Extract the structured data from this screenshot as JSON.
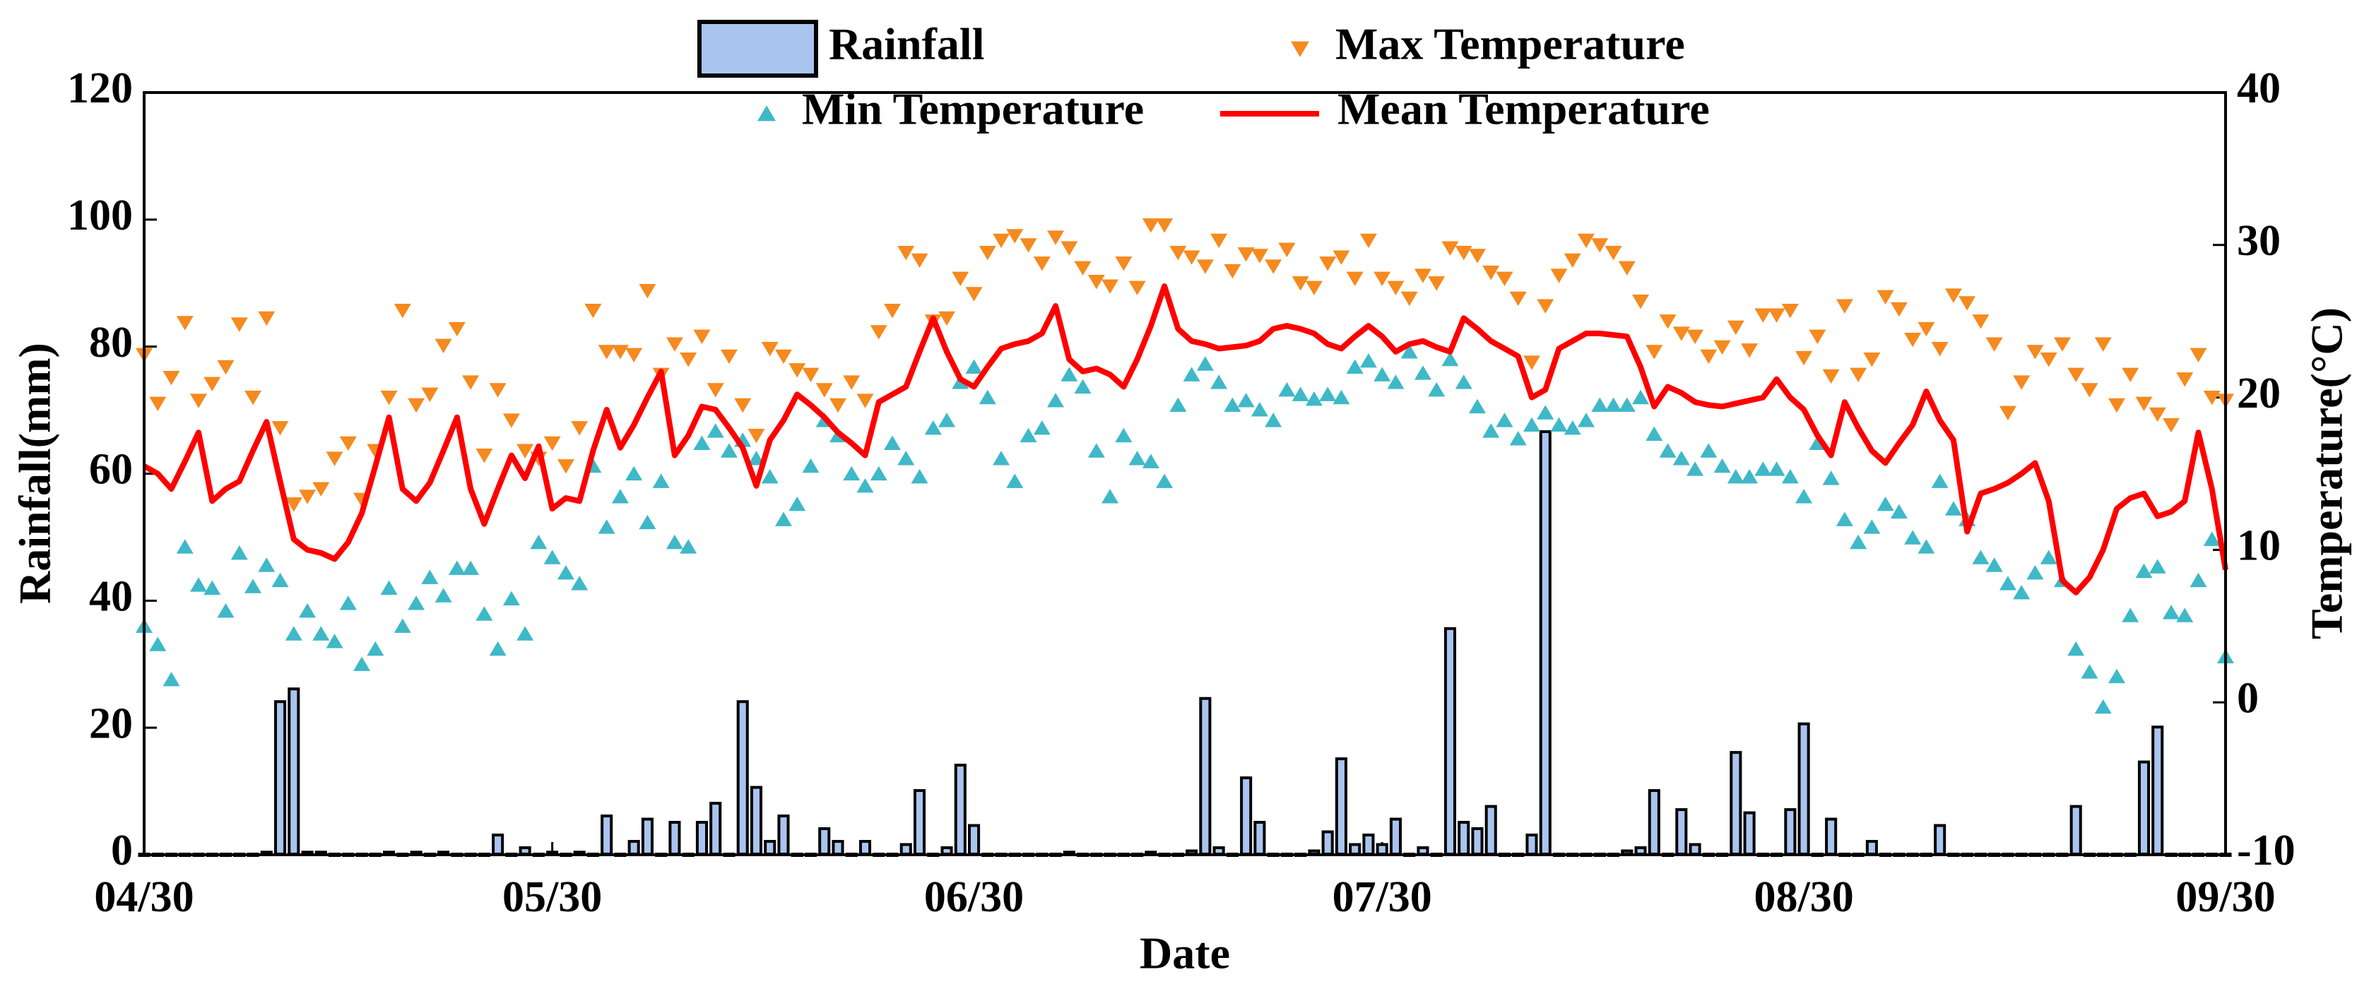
{
  "chart_data": {
    "type": "bar",
    "x_label": "Date",
    "y_label": "Rainfall(mm)",
    "y2_label": "Temperature(°C)",
    "legend": "upper center",
    "categories": [
      "04/30",
      "05/01",
      "05/02",
      "05/03",
      "05/04",
      "05/05",
      "05/06",
      "05/07",
      "05/08",
      "05/09",
      "05/10",
      "05/11",
      "05/12",
      "05/13",
      "05/14",
      "05/15",
      "05/16",
      "05/17",
      "05/18",
      "05/19",
      "05/20",
      "05/21",
      "05/22",
      "05/23",
      "05/24",
      "05/25",
      "05/26",
      "05/27",
      "05/28",
      "05/29",
      "05/30",
      "05/31",
      "06/01",
      "06/02",
      "06/03",
      "06/04",
      "06/05",
      "06/06",
      "06/07",
      "06/08",
      "06/09",
      "06/10",
      "06/11",
      "06/12",
      "06/13",
      "06/14",
      "06/15",
      "06/16",
      "06/17",
      "06/18",
      "06/19",
      "06/20",
      "06/21",
      "06/22",
      "06/23",
      "06/24",
      "06/25",
      "06/26",
      "06/27",
      "06/28",
      "06/29",
      "06/30",
      "07/01",
      "07/02",
      "07/03",
      "07/04",
      "07/05",
      "07/06",
      "07/07",
      "07/08",
      "07/09",
      "07/10",
      "07/11",
      "07/12",
      "07/13",
      "07/14",
      "07/15",
      "07/16",
      "07/17",
      "07/18",
      "07/19",
      "07/20",
      "07/21",
      "07/22",
      "07/23",
      "07/24",
      "07/25",
      "07/26",
      "07/27",
      "07/28",
      "07/29",
      "07/30",
      "07/31",
      "08/01",
      "08/02",
      "08/03",
      "08/04",
      "08/05",
      "08/06",
      "08/07",
      "08/08",
      "08/09",
      "08/10",
      "08/11",
      "08/12",
      "08/13",
      "08/14",
      "08/15",
      "08/16",
      "08/17",
      "08/18",
      "08/19",
      "08/20",
      "08/21",
      "08/22",
      "08/23",
      "08/24",
      "08/25",
      "08/26",
      "08/27",
      "08/28",
      "08/29",
      "08/30",
      "08/31",
      "09/01",
      "09/02",
      "09/03",
      "09/04",
      "09/05",
      "09/06",
      "09/07",
      "09/08",
      "09/09",
      "09/10",
      "09/11",
      "09/12",
      "09/13",
      "09/14",
      "09/15",
      "09/16",
      "09/17",
      "09/18",
      "09/19",
      "09/20",
      "09/21",
      "09/22",
      "09/23",
      "09/24",
      "09/25",
      "09/26",
      "09/27",
      "09/28",
      "09/29",
      "09/30"
    ],
    "xticks": [
      "04/30",
      "05/30",
      "06/30",
      "07/30",
      "08/30",
      "09/30"
    ],
    "ylim": [
      0,
      120
    ],
    "yticks": [
      0,
      20,
      40,
      60,
      80,
      100,
      120
    ],
    "y2lim": [
      -10,
      40
    ],
    "y2ticks": [
      -10,
      0,
      10,
      20,
      30,
      40
    ],
    "series": [
      {
        "name": "Rainfall",
        "type": "bar",
        "color": "#a9c4ef",
        "edgecolor": "#000000",
        "values": [
          0,
          0,
          0,
          0,
          0,
          0,
          0,
          0,
          0,
          0.3,
          24,
          26,
          0.3,
          0.3,
          0,
          0,
          0,
          0,
          0.3,
          0,
          0.3,
          0,
          0.3,
          0,
          0,
          0,
          3,
          0,
          1,
          0,
          0.3,
          0,
          0.3,
          0,
          6,
          0,
          2,
          5.5,
          0,
          5,
          0,
          5,
          8,
          0,
          24,
          10.5,
          2,
          6,
          0,
          0,
          4,
          2,
          0,
          2,
          0,
          0,
          1.5,
          10,
          0,
          1,
          14,
          4.5,
          0,
          0,
          0,
          0,
          0,
          0,
          0.3,
          0,
          0,
          0,
          0,
          0,
          0.3,
          0,
          0,
          0.5,
          24.5,
          1,
          0,
          12,
          5,
          0,
          0,
          0,
          0.5,
          3.5,
          15,
          1.5,
          3,
          1.5,
          5.5,
          0,
          1,
          0,
          35.5,
          5,
          4,
          7.5,
          0,
          0,
          3,
          66.5,
          0,
          0,
          0,
          0,
          0,
          0.5,
          1,
          10,
          0,
          7,
          1.5,
          0,
          0,
          16,
          6.5,
          0,
          0,
          7,
          20.5,
          0,
          5.5,
          0,
          0,
          2,
          0,
          0,
          0,
          0,
          4.5,
          0,
          0,
          0,
          0,
          0,
          0,
          0,
          0,
          0,
          7.5,
          0,
          0,
          0,
          0,
          14.5,
          20,
          0,
          0,
          0,
          0,
          0
        ]
      },
      {
        "name": "Max Temperature",
        "type": "scatter",
        "marker": "down",
        "axis": "y2",
        "color": "#f58a1f",
        "values": [
          22.8,
          19.6,
          21.3,
          24.9,
          19.8,
          20.9,
          22,
          24.8,
          20,
          25.2,
          18,
          13,
          13.5,
          14,
          16,
          17,
          13.3,
          16.5,
          20,
          25.7,
          19.5,
          20.2,
          23.4,
          24.5,
          21,
          16.2,
          20.5,
          18.5,
          16.5,
          16,
          17,
          15.5,
          18,
          25.7,
          23,
          23,
          22.8,
          27,
          21.5,
          23.5,
          22.5,
          24,
          20.5,
          22.7,
          19.5,
          17.5,
          23.2,
          22.7,
          21.8,
          21.5,
          20.5,
          19.5,
          21,
          19.8,
          24.3,
          25.7,
          29.5,
          29,
          25,
          25.2,
          27.8,
          26.8,
          29.5,
          30.3,
          30.6,
          30,
          28.8,
          30.5,
          29.8,
          28.5,
          27.6,
          27.3,
          28.8,
          27.2,
          31.3,
          31.3,
          29.5,
          29.2,
          28.6,
          30.3,
          28.3,
          29.4,
          29.3,
          28.6,
          29.7,
          27.5,
          27.2,
          28.8,
          29.2,
          27.8,
          30.3,
          27.8,
          27.2,
          26.5,
          28,
          27.5,
          29.8,
          29.5,
          29.3,
          28.2,
          27.8,
          26.5,
          22.3,
          26,
          28,
          29,
          30.3,
          30,
          29.5,
          28.5,
          26.3,
          23,
          25,
          24.2,
          24,
          22.7,
          23.3,
          24.6,
          23.1,
          25.4,
          25.4,
          25.7,
          22.6,
          24,
          21.4,
          26,
          21.5,
          22.5,
          26.6,
          25.8,
          23.8,
          24.5,
          23.2,
          26.7,
          26.2,
          25,
          23.5,
          19,
          21,
          23,
          22.5,
          23.5,
          21.5,
          20.5,
          23.5,
          19.5,
          21.5,
          19.6,
          18.9,
          18.2,
          21.2,
          22.8,
          20,
          19.8
        ]
      },
      {
        "name": "Min Temperature",
        "type": "scatter",
        "marker": "up",
        "axis": "y2",
        "color": "#3fb8c8",
        "values": [
          5,
          3.8,
          1.5,
          10.2,
          7.7,
          7.5,
          6,
          9.8,
          7.6,
          9,
          8,
          4.5,
          6,
          4.5,
          4,
          6.5,
          2.5,
          3.5,
          7.5,
          5,
          6.5,
          8.2,
          7,
          8.8,
          8.8,
          5.8,
          3.5,
          6.8,
          4.5,
          10.5,
          9.5,
          8.5,
          7.8,
          15.5,
          11.5,
          13.5,
          15,
          11.8,
          14.5,
          10.5,
          10.2,
          17,
          17.8,
          16.5,
          17.2,
          16,
          14.8,
          12,
          13,
          15.5,
          18.5,
          17.5,
          15,
          14.2,
          15,
          17,
          16,
          14.8,
          18,
          18.5,
          21,
          22,
          20,
          16,
          14.5,
          17.5,
          18,
          19.8,
          21.5,
          20.7,
          16.5,
          13.5,
          17.5,
          16,
          15.8,
          14.5,
          19.5,
          21.5,
          22.2,
          21,
          19.5,
          19.8,
          19.2,
          18.5,
          20.5,
          20.2,
          19.9,
          20.2,
          20,
          22,
          22.4,
          21.5,
          21,
          23,
          21.6,
          20.5,
          22.5,
          21,
          19.4,
          17.8,
          18.5,
          17.3,
          18.2,
          19,
          18.2,
          18,
          18.5,
          19.5,
          19.5,
          19.5,
          20,
          17.6,
          16.5,
          16,
          15.3,
          16.5,
          15.5,
          14.8,
          14.8,
          15.3,
          15.3,
          14.8,
          13.5,
          17,
          14.7,
          12,
          10.5,
          11.5,
          13,
          12.5,
          10.8,
          10.2,
          14.5,
          12.7,
          12,
          9.5,
          9,
          7.8,
          7.2,
          8.5,
          9.5,
          8,
          3.5,
          2,
          -0.3,
          1.7,
          5.7,
          8.6,
          8.9,
          5.9,
          5.7,
          8,
          10.7,
          3
        ]
      },
      {
        "name": "Mean Temperature",
        "type": "line",
        "axis": "y2",
        "color": "#ff0000",
        "values": [
          15.5,
          15,
          14,
          15.8,
          17.7,
          13.2,
          14,
          14.5,
          16.5,
          18.4,
          14.5,
          10.7,
          10,
          9.8,
          9.4,
          10.5,
          12.4,
          15.5,
          18.7,
          14,
          13.2,
          14.4,
          16.5,
          18.7,
          14,
          11.7,
          14,
          16.2,
          14.7,
          16.8,
          12.7,
          13.4,
          13.2,
          16.5,
          19.2,
          16.7,
          18.2,
          20,
          21.7,
          16.2,
          17.5,
          19.4,
          19.2,
          18,
          16.7,
          14.2,
          17.2,
          18.5,
          20.2,
          19.5,
          18.7,
          17.7,
          17,
          16.2,
          19.7,
          20.2,
          20.7,
          23,
          25.2,
          23,
          21.2,
          20.7,
          22,
          23.2,
          23.5,
          23.7,
          24.2,
          26,
          22.5,
          21.7,
          21.9,
          21.5,
          20.7,
          22.5,
          24.7,
          27.3,
          24.5,
          23.7,
          23.5,
          23.2,
          23.3,
          23.4,
          23.7,
          24.5,
          24.7,
          24.5,
          24.2,
          23.5,
          23.2,
          24,
          24.7,
          24,
          23,
          23.5,
          23.7,
          23.3,
          23,
          25.2,
          24.5,
          23.7,
          23.2,
          22.7,
          20,
          20.5,
          23.2,
          23.7,
          24.2,
          24.2,
          24.1,
          24,
          22,
          19.4,
          20.7,
          20.3,
          19.7,
          19.5,
          19.4,
          19.6,
          19.8,
          20,
          21.2,
          20,
          19.2,
          17.5,
          16.2,
          19.7,
          18,
          16.5,
          15.7,
          17,
          18.2,
          20.4,
          18.5,
          17.2,
          11.2,
          13.7,
          14,
          14.4,
          15,
          15.7,
          13.2,
          8,
          7.2,
          8.2,
          10,
          12.7,
          13.4,
          13.7,
          12.2,
          12.5,
          13.2,
          17.7,
          14,
          8.7
        ]
      }
    ]
  }
}
